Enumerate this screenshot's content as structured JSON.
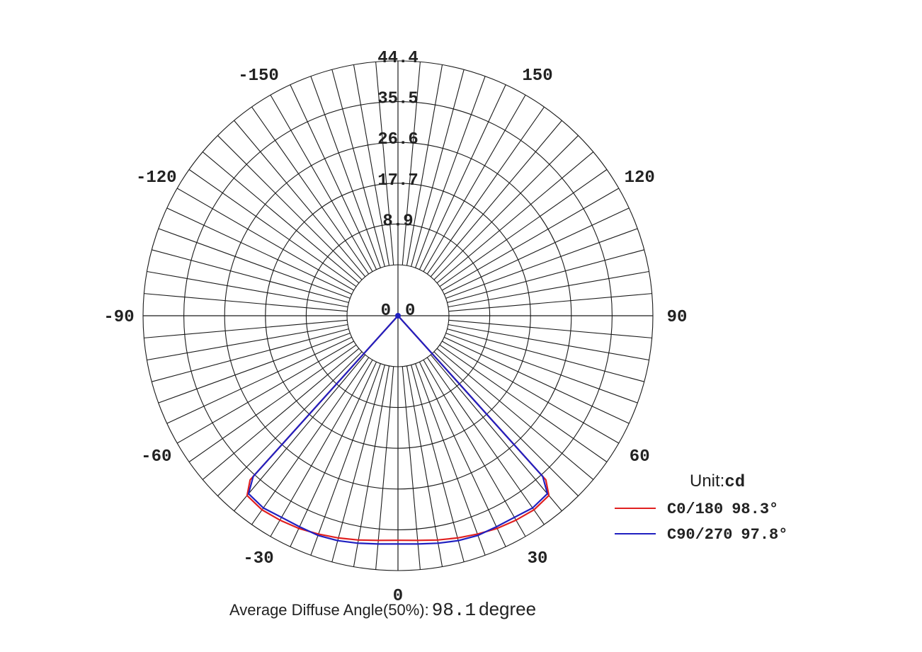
{
  "chart_data": {
    "type": "polar-line",
    "unit_label": "Unit:",
    "unit_value": "cd",
    "radial_ticks": [
      "0",
      "8.9",
      "17.7",
      "26.6",
      "35.5",
      "44.4"
    ],
    "radial_max": 44.4,
    "angle_labels": [
      {
        "text": "0",
        "angle": 0
      },
      {
        "text": "30",
        "angle": 30
      },
      {
        "text": "60",
        "angle": 60
      },
      {
        "text": "90",
        "angle": 90
      },
      {
        "text": "120",
        "angle": 120
      },
      {
        "text": "150",
        "angle": 150
      },
      {
        "text": "-30",
        "angle": -30
      },
      {
        "text": "-60",
        "angle": -60
      },
      {
        "text": "-90",
        "angle": -90
      },
      {
        "text": "-120",
        "angle": -120
      },
      {
        "text": "-150",
        "angle": -150
      }
    ],
    "center_labels": [
      "0",
      "0"
    ],
    "spoke_step_deg": 5,
    "series": [
      {
        "name": "C0/180",
        "value_label": "98.3°",
        "color": "#e02020",
        "angles": [
          -42,
          -40,
          -35,
          -30,
          -25,
          -20,
          -15,
          -10,
          -5,
          0,
          5,
          10,
          15,
          20,
          25,
          30,
          35,
          40,
          42
        ],
        "values": [
          37,
          40,
          40.5,
          40.3,
          40,
          39.5,
          39,
          38.5,
          38,
          37.8,
          38,
          38.5,
          39,
          39.5,
          40,
          40.3,
          40.5,
          40,
          37
        ]
      },
      {
        "name": "C90/270",
        "value_label": "97.8°",
        "color": "#2020c0",
        "angles": [
          -42,
          -40,
          -35,
          -30,
          -25,
          -20,
          -15,
          -10,
          -5,
          0,
          5,
          10,
          15,
          20,
          25,
          30,
          35,
          40,
          42
        ],
        "values": [
          36,
          39.5,
          40,
          39.6,
          39.6,
          39.8,
          39.6,
          39.2,
          38.8,
          38.6,
          38.8,
          39.2,
          39.6,
          39.8,
          39.6,
          39.6,
          40,
          39.5,
          36
        ]
      }
    ],
    "footer": {
      "label": "Average Diffuse Angle(50%):",
      "value": "98.1",
      "unit": "degree"
    }
  }
}
